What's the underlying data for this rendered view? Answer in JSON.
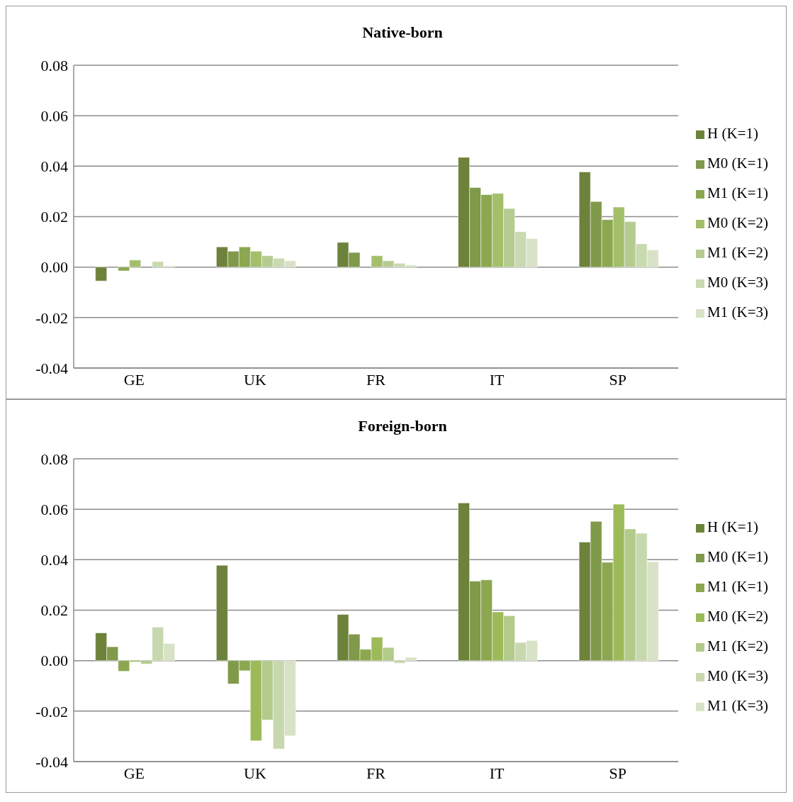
{
  "chart_data": [
    {
      "type": "bar",
      "title": "Native-born",
      "categories": [
        "GE",
        "UK",
        "FR",
        "IT",
        "SP"
      ],
      "ylim": [
        -0.04,
        0.08
      ],
      "yticks": [
        {
          "value": -0.04,
          "label": "-0.04"
        },
        {
          "value": -0.02,
          "label": "-0.02"
        },
        {
          "value": 0,
          "label": "0.00"
        },
        {
          "value": 0.02,
          "label": "0.02"
        },
        {
          "value": 0.04,
          "label": "0.04"
        },
        {
          "value": 0.06,
          "label": "0.06"
        },
        {
          "value": 0.08,
          "label": "0.08"
        }
      ],
      "grid": "y",
      "legend": "right",
      "series": [
        {
          "name": "H (K=1)",
          "color": "#6d823a",
          "values": [
            -0.0055,
            0.008,
            0.0098,
            0.0435,
            0.0377
          ]
        },
        {
          "name": "M0 (K=1)",
          "color": "#80994a",
          "values": [
            0,
            0.0063,
            0.0058,
            0.0315,
            0.026
          ]
        },
        {
          "name": "M1 (K=1)",
          "color": "#8ca750",
          "values": [
            -0.0015,
            0.008,
            0,
            0.0287,
            0.0188
          ]
        },
        {
          "name": "M0 (K=2)",
          "color": "#a3bf6a",
          "values": [
            0.0028,
            0.0063,
            0.0045,
            0.0292,
            0.0238
          ]
        },
        {
          "name": "M1 (K=2)",
          "color": "#b6cb91",
          "values": [
            0,
            0.0045,
            0.0025,
            0.0232,
            0.018
          ]
        },
        {
          "name": "M0 (K=3)",
          "color": "#c9d9b0",
          "values": [
            0.0022,
            0.0035,
            0.0015,
            0.014,
            0.0092
          ]
        },
        {
          "name": "M1 (K=3)",
          "color": "#d8e2c6",
          "values": [
            0.0005,
            0.0025,
            0.0008,
            0.0113,
            0.0068
          ]
        }
      ]
    },
    {
      "type": "bar",
      "title": "Foreign-born",
      "categories": [
        "GE",
        "UK",
        "FR",
        "IT",
        "SP"
      ],
      "ylim": [
        -0.04,
        0.08
      ],
      "yticks": [
        {
          "value": -0.04,
          "label": "-0.04"
        },
        {
          "value": -0.02,
          "label": "-0.02"
        },
        {
          "value": 0,
          "label": "0.00"
        },
        {
          "value": 0.02,
          "label": "0.02"
        },
        {
          "value": 0.04,
          "label": "0.04"
        },
        {
          "value": 0.06,
          "label": "0.06"
        },
        {
          "value": 0.08,
          "label": "0.08"
        }
      ],
      "grid": "y",
      "legend": "right",
      "series": [
        {
          "name": "H (K=1)",
          "color": "#6d823a",
          "values": [
            0.011,
            0.0378,
            0.0183,
            0.0625,
            0.047
          ]
        },
        {
          "name": "M0 (K=1)",
          "color": "#80994a",
          "values": [
            0.0055,
            -0.0092,
            0.0105,
            0.0315,
            0.0552
          ]
        },
        {
          "name": "M1 (K=1)",
          "color": "#8ca750",
          "values": [
            -0.0042,
            -0.004,
            0.0045,
            0.032,
            0.039
          ]
        },
        {
          "name": "M0 (K=2)",
          "color": "#9dba58",
          "values": [
            -0.0005,
            -0.0318,
            0.0093,
            0.0193,
            0.062
          ]
        },
        {
          "name": "M1 (K=2)",
          "color": "#b3ca8b",
          "values": [
            -0.0013,
            -0.0235,
            0.0052,
            0.0178,
            0.0522
          ]
        },
        {
          "name": "M0 (K=3)",
          "color": "#c7d8ae",
          "values": [
            0.0133,
            -0.035,
            -0.001,
            0.0072,
            0.0505
          ]
        },
        {
          "name": "M1 (K=3)",
          "color": "#d8e2c6",
          "values": [
            0.0068,
            -0.0298,
            0.0013,
            0.008,
            0.0392
          ]
        }
      ]
    }
  ]
}
